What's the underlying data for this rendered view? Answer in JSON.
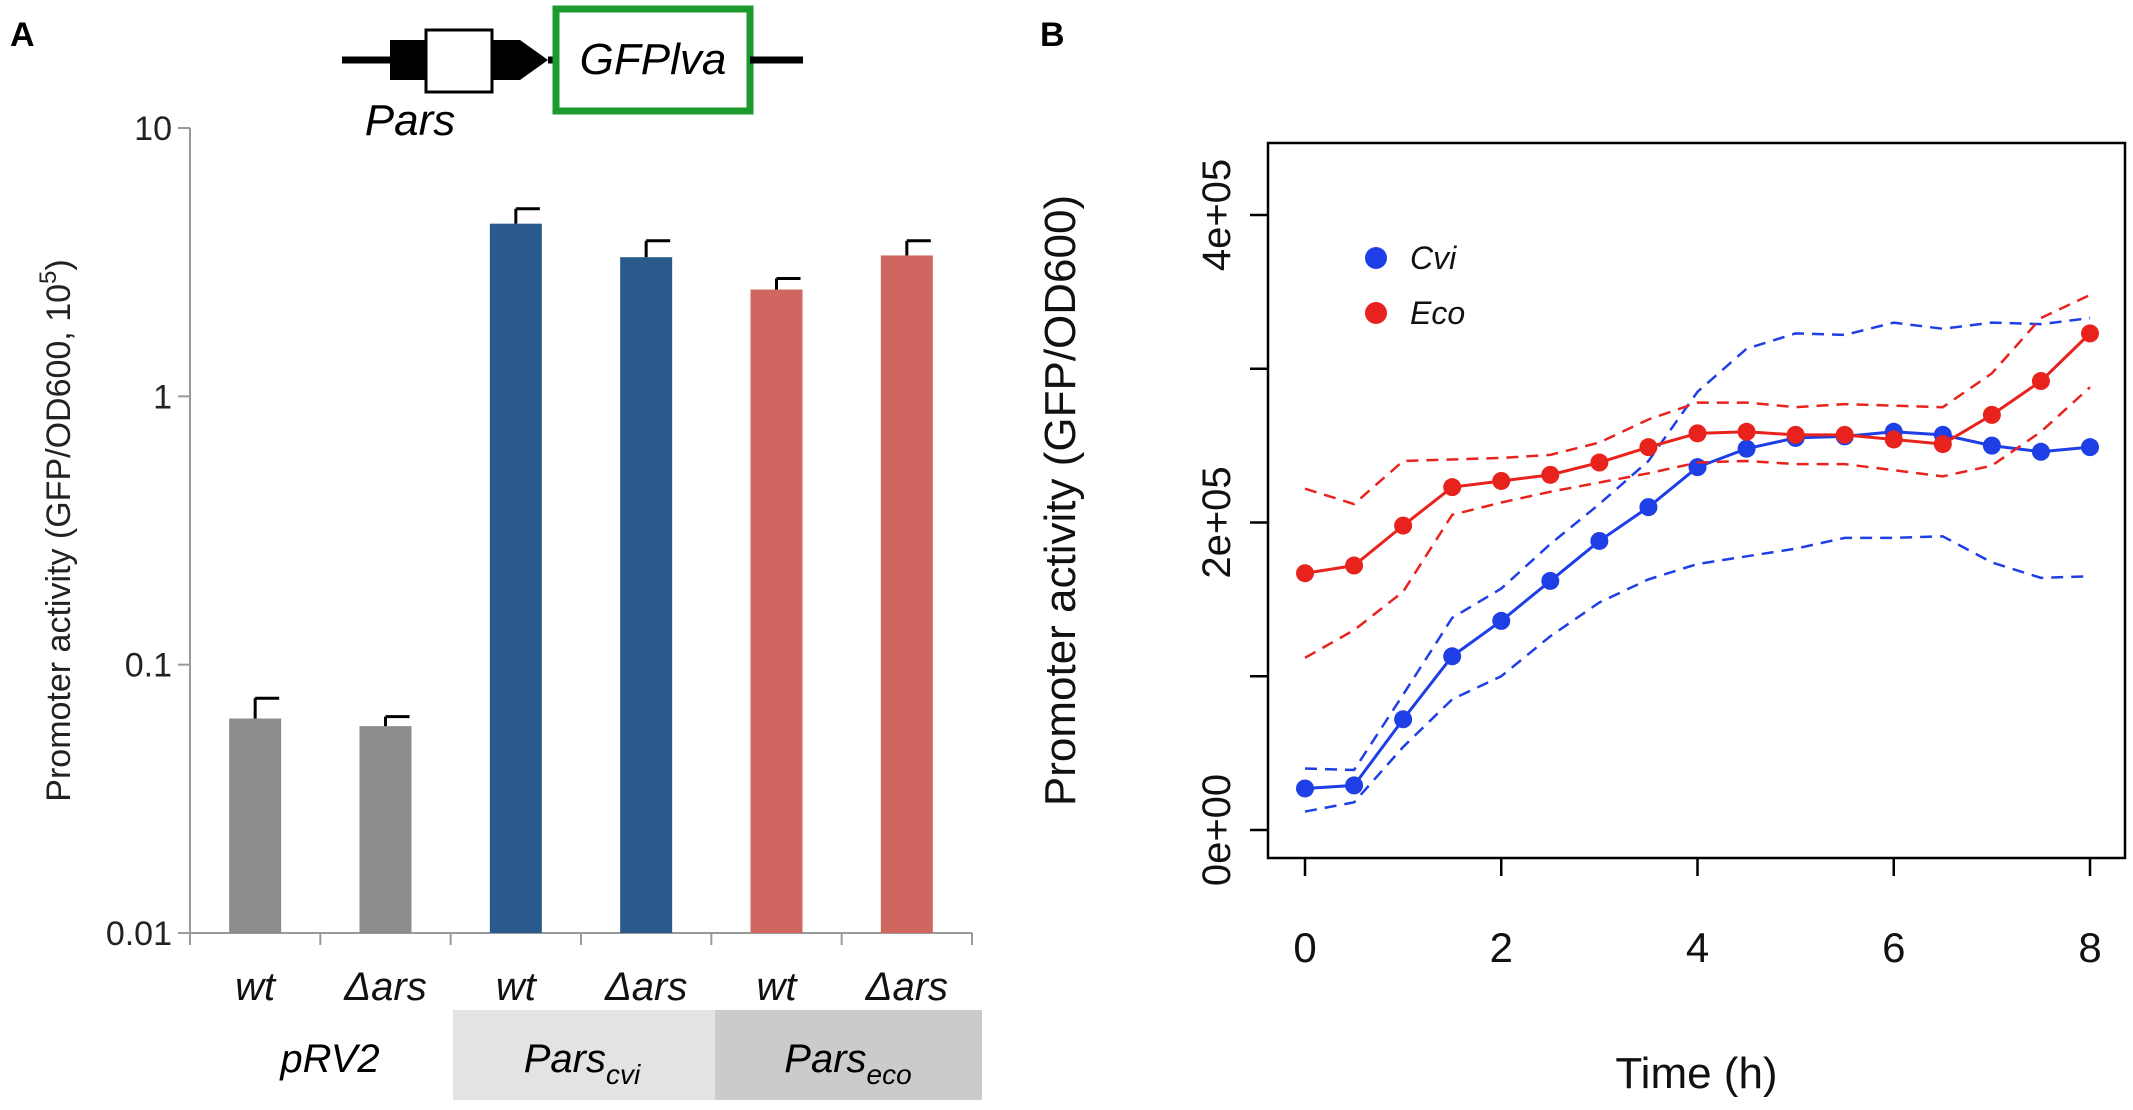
{
  "panel_a": {
    "label": "A",
    "construct": {
      "promoter_label": "Pars",
      "gene_label": "GFPlva",
      "gene_box_color": "#1c9a2e"
    },
    "group_labels": {
      "pRV2": "pRV2",
      "cvi_base": "Pars",
      "cvi_sub": "cvi",
      "eco_base": "Pars",
      "eco_sub": "eco"
    },
    "group_band_colors": {
      "cvi": "#e3e3e3",
      "eco": "#cbcbcb"
    }
  },
  "panel_b": {
    "label": "B"
  },
  "chart_data": [
    {
      "type": "bar",
      "panel": "A",
      "scale": "log",
      "ylabel": "Promoter activity (GFP/OD600, 10",
      "ylabel_sup": "5",
      "ylabel_end": ")",
      "ylim": [
        0.01,
        10
      ],
      "yticks": [
        0.01,
        0.1,
        1,
        10
      ],
      "ytick_labels": [
        "0.01",
        "0.1",
        "1",
        "10"
      ],
      "categories": [
        "wt",
        "Δars",
        "wt",
        "Δars",
        "wt",
        "Δars"
      ],
      "groups": [
        "pRV2",
        "pRV2",
        "cvi",
        "cvi",
        "eco",
        "eco"
      ],
      "values": [
        0.063,
        0.059,
        4.4,
        3.3,
        2.5,
        3.35
      ],
      "errors_upper": [
        0.075,
        0.064,
        5.0,
        3.8,
        2.75,
        3.8
      ],
      "colors": [
        "#8c8c8c",
        "#8c8c8c",
        "#2a5a8c",
        "#2a5a8c",
        "#cf6660",
        "#cf6660"
      ]
    },
    {
      "type": "line",
      "panel": "B",
      "xlabel": "Time (h)",
      "ylabel": "Promoter activity (GFP/OD600)",
      "xlim": [
        0,
        8
      ],
      "ylim": [
        0,
        400000
      ],
      "xticks": [
        0,
        2,
        4,
        6,
        8
      ],
      "xtick_labels": [
        "0",
        "2",
        "4",
        "6",
        "8"
      ],
      "yticks": [
        0,
        100000,
        200000,
        300000,
        400000
      ],
      "ytick_labels": [
        "0e+00",
        "",
        "2e+05",
        "",
        "4e+05"
      ],
      "x": [
        0,
        0.5,
        1,
        1.5,
        2,
        2.5,
        3,
        3.5,
        4,
        4.5,
        5,
        5.5,
        6,
        6.5,
        7,
        7.5,
        8
      ],
      "series": [
        {
          "name": "Cvi",
          "color": "#1f3fe6",
          "values": [
            27000,
            29000,
            72000,
            113000,
            136000,
            162000,
            188000,
            210000,
            236000,
            248000,
            255000,
            256000,
            259000,
            257000,
            250000,
            246000,
            249000
          ],
          "upper": [
            40000,
            39000,
            88000,
            138000,
            157000,
            186000,
            212000,
            240000,
            285000,
            313000,
            323000,
            322000,
            330000,
            326000,
            330000,
            329000,
            333000
          ],
          "lower": [
            12000,
            18000,
            54000,
            85000,
            100000,
            126000,
            148000,
            163000,
            173000,
            178000,
            183000,
            190000,
            190000,
            191000,
            174000,
            164000,
            165000
          ]
        },
        {
          "name": "Eco",
          "color": "#e8231e",
          "values": [
            167000,
            172000,
            198000,
            223000,
            227000,
            231000,
            239000,
            249000,
            258000,
            259000,
            257000,
            257000,
            254000,
            251000,
            270000,
            292000,
            323000
          ],
          "upper": [
            222000,
            212000,
            240000,
            241000,
            242000,
            244000,
            252000,
            267000,
            278000,
            278000,
            275000,
            277000,
            276000,
            275000,
            297000,
            333000,
            348000
          ],
          "lower": [
            112000,
            130000,
            155000,
            205000,
            213000,
            220000,
            226000,
            232000,
            239000,
            240000,
            238000,
            238000,
            234000,
            230000,
            237000,
            259000,
            288000
          ]
        }
      ],
      "legend": [
        "Cvi",
        "Eco"
      ],
      "legend_position": "top-left"
    }
  ]
}
